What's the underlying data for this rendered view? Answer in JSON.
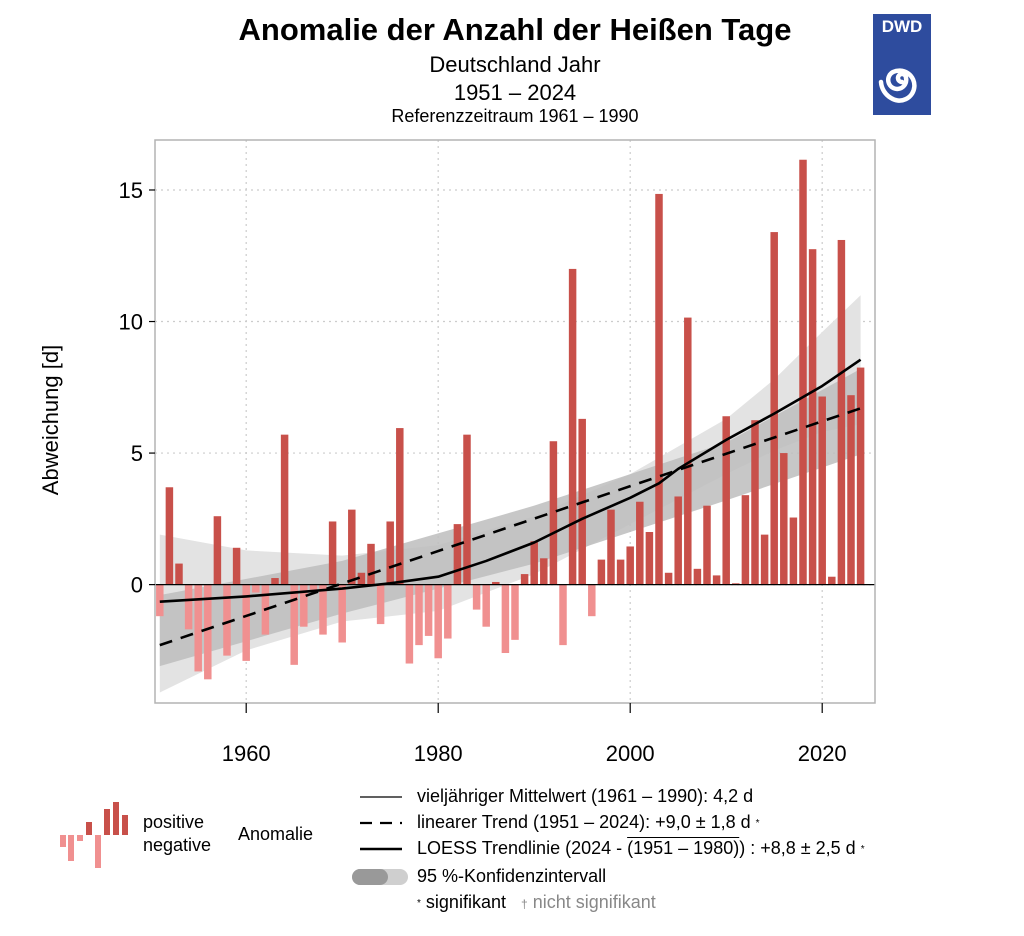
{
  "header": {
    "title": "Anomalie der Anzahl der Heißen Tage",
    "subtitle_region": "Deutschland Jahr",
    "subtitle_period": "1951 – 2024",
    "subtitle_reference": "Referenzzeitraum 1961 – 1990",
    "logo_text": "DWD"
  },
  "colors": {
    "positive": "#c8504a",
    "negative": "#f09090",
    "band_light": "#e3e3e3",
    "band_dark": "#bdbdbd",
    "logo_blue": "#2e4c9e"
  },
  "chart_data": {
    "type": "bar",
    "title": "Anomalie der Anzahl der Heißen Tage",
    "xlabel": "",
    "ylabel": "Abweichung [d]",
    "xlim": [
      1950.5,
      2025.5
    ],
    "ylim": [
      -4.5,
      16.9
    ],
    "x_ticks": [
      1960,
      1980,
      2000,
      2020
    ],
    "x_tick_labels": [
      "1960",
      "1980",
      "2000",
      "2020"
    ],
    "y_ticks": [
      0,
      5,
      10,
      15
    ],
    "y_tick_labels": [
      "0",
      "5",
      "10",
      "15"
    ],
    "grid": true,
    "categories": [
      1951,
      1952,
      1953,
      1954,
      1955,
      1956,
      1957,
      1958,
      1959,
      1960,
      1961,
      1962,
      1963,
      1964,
      1965,
      1966,
      1967,
      1968,
      1969,
      1970,
      1971,
      1972,
      1973,
      1974,
      1975,
      1976,
      1977,
      1978,
      1979,
      1980,
      1981,
      1982,
      1983,
      1984,
      1985,
      1986,
      1987,
      1988,
      1989,
      1990,
      1991,
      1992,
      1993,
      1994,
      1995,
      1996,
      1997,
      1998,
      1999,
      2000,
      2001,
      2002,
      2003,
      2004,
      2005,
      2006,
      2007,
      2008,
      2009,
      2010,
      2011,
      2012,
      2013,
      2014,
      2015,
      2016,
      2017,
      2018,
      2019,
      2020,
      2021,
      2022,
      2023,
      2024
    ],
    "values": [
      -1.2,
      3.7,
      0.8,
      -1.7,
      -3.3,
      -3.6,
      2.6,
      -2.7,
      1.4,
      -2.9,
      -0.3,
      -1.9,
      0.25,
      5.7,
      -3.05,
      -1.6,
      -0.2,
      -1.9,
      2.4,
      -2.2,
      2.85,
      0.45,
      1.55,
      -1.5,
      2.4,
      5.95,
      -3.0,
      -2.3,
      -1.95,
      -2.8,
      -2.05,
      2.3,
      5.7,
      -0.95,
      -1.6,
      0.1,
      -2.6,
      -2.1,
      0.4,
      1.65,
      1.0,
      5.45,
      -2.3,
      12.0,
      6.3,
      -1.2,
      0.95,
      2.85,
      0.95,
      1.45,
      3.15,
      2.0,
      14.85,
      0.45,
      3.35,
      10.15,
      0.6,
      3.0,
      0.35,
      6.4,
      0.05,
      3.4,
      6.25,
      1.9,
      13.4,
      5.0,
      2.55,
      16.15,
      12.75,
      7.15,
      0.3,
      13.1,
      7.2,
      8.25
    ],
    "series": [
      {
        "name": "lineare Trend",
        "style": "dashed",
        "x": [
          1951,
          2024
        ],
        "y": [
          -2.3,
          6.7
        ]
      },
      {
        "name": "LOESS Trendlinie",
        "style": "solid",
        "x": [
          1951,
          1960,
          1970,
          1975,
          1980,
          1985,
          1990,
          1995,
          2000,
          2003,
          2005,
          2010,
          2015,
          2020,
          2024
        ],
        "y": [
          -0.65,
          -0.45,
          -0.15,
          0.05,
          0.3,
          0.9,
          1.6,
          2.5,
          3.3,
          3.85,
          4.4,
          5.5,
          6.5,
          7.55,
          8.55
        ]
      },
      {
        "name": "Konfidenzintervall linear",
        "type": "band",
        "x": [
          1951,
          1970,
          1990,
          2010,
          2024
        ],
        "upper": [
          -0.4,
          0.9,
          3.0,
          5.4,
          8.2
        ],
        "lower": [
          -3.1,
          -1.1,
          0.8,
          3.2,
          4.95
        ]
      },
      {
        "name": "Konfidenzintervall LOESS",
        "type": "band",
        "x": [
          1951,
          1960,
          1970,
          1980,
          1990,
          2000,
          2010,
          2015,
          2020,
          2024
        ],
        "upper": [
          1.9,
          1.3,
          1.1,
          1.5,
          2.6,
          4.2,
          6.3,
          7.8,
          9.6,
          11.0
        ],
        "lower": [
          -4.1,
          -2.5,
          -1.4,
          -1.0,
          0.4,
          2.3,
          4.2,
          5.1,
          5.8,
          6.1
        ]
      }
    ],
    "reference_mean": {
      "label": "vieljähriger Mittelwert (1961 – 1990)",
      "value": 4.2,
      "unit": "d"
    },
    "linear_trend": {
      "label": "linearer Trend (1951 – 2024)",
      "value": "+9,0 ± 1,8 d",
      "significant": true
    },
    "loess_trend": {
      "label": "LOESS Trendlinie (2024 - (1951 – 1980))",
      "value": "+8,8 ± 2,5 d",
      "significant": true
    }
  },
  "legend": {
    "positive": "positive",
    "negative": "negative",
    "anomalie": "Anomalie",
    "mean_label": "vieljähriger Mittelwert (1961 – 1990): 4,2 d",
    "linear_label": "linearer Trend (1951 – 2024):",
    "linear_value": "+9,0 ± 1,8 d",
    "loess_label_pre": "LOESS Trendlinie (2024 - ",
    "loess_label_over": "(1951 – 1980)",
    "loess_label_post": ") :",
    "loess_value": "+8,8 ± 2,5 d",
    "ci_label": "95 %-Konfidenzintervall",
    "star": "*",
    "dagger": "†",
    "significant": "signifikant",
    "not_significant": "nicht signifikant"
  }
}
